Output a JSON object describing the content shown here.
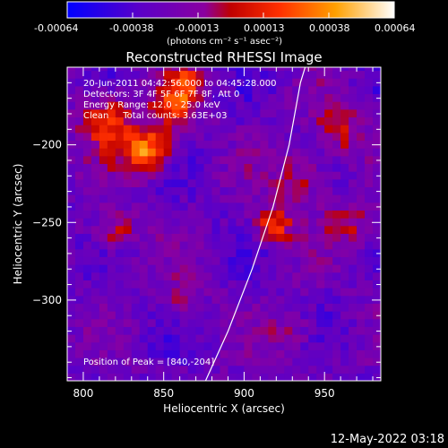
{
  "colorbar": {
    "ticks": [
      "-0.00064",
      "-0.00038",
      "-0.00013",
      "0.00013",
      "0.00038",
      "0.00064"
    ],
    "units": "(photons cm⁻² s⁻¹ asec⁻²)",
    "vmin": -0.00064,
    "vmax": 0.00064
  },
  "annotations": {
    "time_range": "20-Jun-2011 04:42:56.000 to 04:45:28.000",
    "detectors": "Detectors: 3F 4F 5F 6F 7F 8F, Att 0",
    "energy": "Energy Range: 12.0 - 25.0 keV",
    "clean": "Clean     Total counts: 3.63E+03",
    "peak": "Position of Peak = [840,-204]"
  },
  "footer": {
    "date": "12-May-2022 03:18"
  },
  "chart_data": {
    "type": "heatmap",
    "title": "Reconstructed RHESSI Image",
    "xlabel": "Heliocentric X (arcsec)",
    "ylabel": "Heliocentric Y (arcsec)",
    "xlim": [
      790,
      985
    ],
    "ylim": [
      -352,
      -150
    ],
    "xticks": [
      800,
      850,
      900,
      950
    ],
    "yticks": [
      -200,
      -250,
      -300
    ],
    "limb_curve": [
      [
        876,
        -352
      ],
      [
        890,
        -320
      ],
      [
        905,
        -280
      ],
      [
        918,
        -240
      ],
      [
        928,
        -200
      ],
      [
        935,
        -160
      ],
      [
        938,
        -150
      ]
    ],
    "sources": [
      {
        "x": 840,
        "y": -204,
        "intensity": 0.00064,
        "sigma": 10
      },
      {
        "x": 815,
        "y": -185,
        "intensity": 0.00045,
        "sigma": 12
      },
      {
        "x": 855,
        "y": -175,
        "intensity": 0.0004,
        "sigma": 10
      },
      {
        "x": 865,
        "y": -160,
        "intensity": 0.00035,
        "sigma": 8
      },
      {
        "x": 918,
        "y": -252,
        "intensity": 0.0005,
        "sigma": 8
      },
      {
        "x": 935,
        "y": -220,
        "intensity": 0.00028,
        "sigma": 12
      },
      {
        "x": 960,
        "y": -190,
        "intensity": 0.0003,
        "sigma": 12
      },
      {
        "x": 965,
        "y": -250,
        "intensity": 0.00025,
        "sigma": 10
      },
      {
        "x": 820,
        "y": -255,
        "intensity": 0.0003,
        "sigma": 10
      },
      {
        "x": 930,
        "y": -320,
        "intensity": 0.0002,
        "sigma": 10
      },
      {
        "x": 860,
        "y": -300,
        "intensity": 0.00018,
        "sigma": 10
      }
    ]
  }
}
